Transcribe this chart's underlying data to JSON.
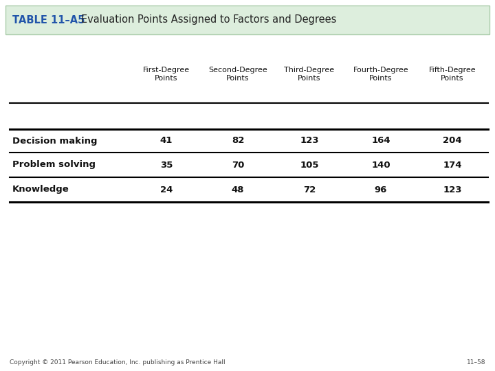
{
  "title_label": "TABLE 11–A5",
  "title_text": "Evaluation Points Assigned to Factors and Degrees",
  "header_bg": "#ddeedd",
  "header_border": "#aaccaa",
  "table_label_color": "#2255aa",
  "col_headers": [
    "First-Degree\nPoints",
    "Second-Degree\nPoints",
    "Third-Degree\nPoints",
    "Fourth-Degree\nPoints",
    "Fifth-Degree\nPoints"
  ],
  "row_labels": [
    "Decision making",
    "Problem solving",
    "Knowledge"
  ],
  "data": [
    [
      41,
      82,
      123,
      164,
      204
    ],
    [
      35,
      70,
      105,
      140,
      174
    ],
    [
      24,
      48,
      72,
      96,
      123
    ]
  ],
  "footer_left": "Copyright © 2011 Pearson Education, Inc. publishing as Prentice Hall",
  "footer_right": "11–58",
  "bg_color": "#ffffff",
  "line_color": "#000000"
}
